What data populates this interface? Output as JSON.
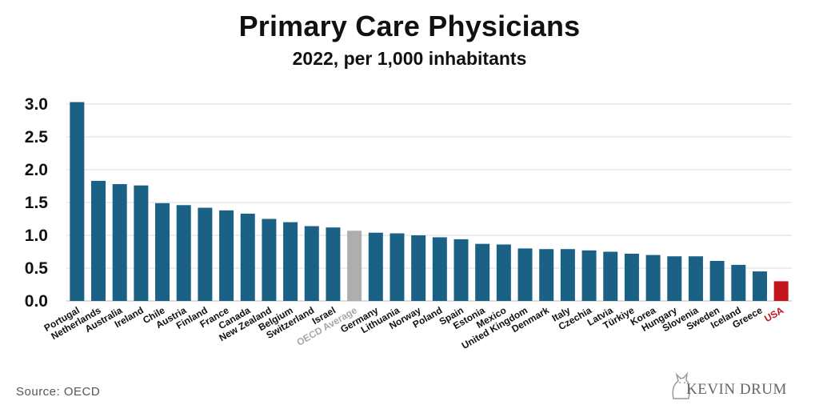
{
  "header": {
    "title": "Primary Care Physicians",
    "subtitle": "2022, per 1,000 inhabitants"
  },
  "footer": {
    "source": "Source:  OECD",
    "brand": "KEVIN DRUM",
    "brand_icon": "cat-icon"
  },
  "colors": {
    "bar": "#1b6185",
    "average": "#aeaeae",
    "highlight": "#c3161c",
    "grid": "#dddddd"
  },
  "chart_data": {
    "type": "bar",
    "title": "Primary Care Physicians",
    "subtitle": "2022, per 1,000 inhabitants",
    "xlabel": "",
    "ylabel": "",
    "ylim": [
      0,
      3.0
    ],
    "yticks": [
      "0.0",
      "0.5",
      "1.0",
      "1.5",
      "2.0",
      "2.5",
      "3.0"
    ],
    "grid": true,
    "categories": [
      "Portugal",
      "Netherlands",
      "Australia",
      "Ireland",
      "Chile",
      "Austria",
      "Finland",
      "France",
      "Canada",
      "New Zealand",
      "Belgium",
      "Switzerland",
      "Israel",
      "OECD Average",
      "Germany",
      "Lithuania",
      "Norway",
      "Poland",
      "Spain",
      "Estonia",
      "Mexico",
      "United Kingdom",
      "Denmark",
      "Italy",
      "Czechia",
      "Latvia",
      "Türkiye",
      "Korea",
      "Hungary",
      "Slovenia",
      "Sweden",
      "Iceland",
      "Greece",
      "USA"
    ],
    "values": [
      3.03,
      1.83,
      1.78,
      1.76,
      1.49,
      1.46,
      1.42,
      1.38,
      1.33,
      1.25,
      1.2,
      1.14,
      1.12,
      1.07,
      1.04,
      1.03,
      1.0,
      0.97,
      0.94,
      0.87,
      0.86,
      0.8,
      0.79,
      0.79,
      0.77,
      0.75,
      0.72,
      0.7,
      0.68,
      0.68,
      0.61,
      0.55,
      0.45,
      0.3
    ],
    "highlight": {
      "OECD Average": "average",
      "USA": "highlight"
    }
  }
}
